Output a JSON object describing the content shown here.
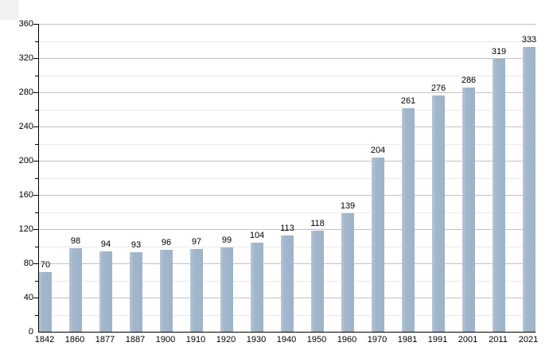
{
  "page": {
    "background": "#ffffff"
  },
  "chart_data": {
    "type": "bar",
    "title": "",
    "xlabel": "",
    "ylabel": "",
    "categories": [
      "1842",
      "1860",
      "1877",
      "1887",
      "1900",
      "1910",
      "1920",
      "1930",
      "1940",
      "1950",
      "1960",
      "1970",
      "1981",
      "1991",
      "2001",
      "2011",
      "2021"
    ],
    "values": [
      70,
      98,
      94,
      93,
      96,
      97,
      99,
      104,
      113,
      118,
      139,
      204,
      261,
      276,
      286,
      319,
      333
    ],
    "value_labels": [
      "70",
      "98",
      "94",
      "93",
      "96",
      "97",
      "99",
      "104",
      "113",
      "118",
      "139",
      "204",
      "261",
      "276",
      "286",
      "319",
      "333"
    ],
    "ylim": [
      0,
      360
    ],
    "y_major_step": 40,
    "y_minor_step": 20,
    "y_tick_labels": [
      "0",
      "40",
      "80",
      "120",
      "160",
      "200",
      "240",
      "280",
      "320",
      "360"
    ],
    "grid": true,
    "legend": false,
    "bar_color": "#a2b7cb",
    "bar_color_light_edge": "#b6c5d4",
    "major_grid_color": "#c2c2c2",
    "minor_grid_color": "#eaeaea",
    "axis_color": "#000000",
    "text_color": "#000000"
  }
}
